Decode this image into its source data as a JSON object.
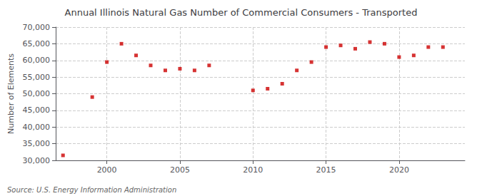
{
  "chart_data": {
    "type": "scatter",
    "title": "Annual Illinois Natural Gas Number of Commercial Consumers - Transported",
    "ylabel": "Number of Elements",
    "annotations": [
      "Source: U.S. Energy Information Administration"
    ],
    "x": [
      1997,
      1999,
      2000,
      2001,
      2002,
      2003,
      2004,
      2005,
      2006,
      2007,
      2010,
      2011,
      2012,
      2013,
      2014,
      2015,
      2016,
      2017,
      2018,
      2019,
      2020,
      2021,
      2022,
      2023
    ],
    "values": [
      31500,
      49000,
      59500,
      65000,
      61500,
      58500,
      57000,
      57500,
      57000,
      58500,
      51000,
      51500,
      53000,
      57000,
      59500,
      64000,
      64500,
      63500,
      65500,
      65000,
      61000,
      61500,
      64000,
      64000
    ],
    "color": "#cc0000",
    "marker": "square",
    "xlim": [
      1996.5,
      2024.5
    ],
    "xticks": [
      2000,
      2005,
      2010,
      2015,
      2020
    ],
    "ylim": [
      30000,
      70000
    ],
    "yticks": [
      {
        "value": 30000,
        "label": "30,000"
      },
      {
        "value": 35000,
        "label": "35,000"
      },
      {
        "value": 40000,
        "label": "40,000"
      },
      {
        "value": 45000,
        "label": "45,000"
      },
      {
        "value": 50000,
        "label": "50,000"
      },
      {
        "value": 55000,
        "label": "55,000"
      },
      {
        "value": 60000,
        "label": "60,000"
      },
      {
        "value": 65000,
        "label": "65,000"
      },
      {
        "value": 70000,
        "label": "70,000"
      }
    ],
    "grid": true
  }
}
